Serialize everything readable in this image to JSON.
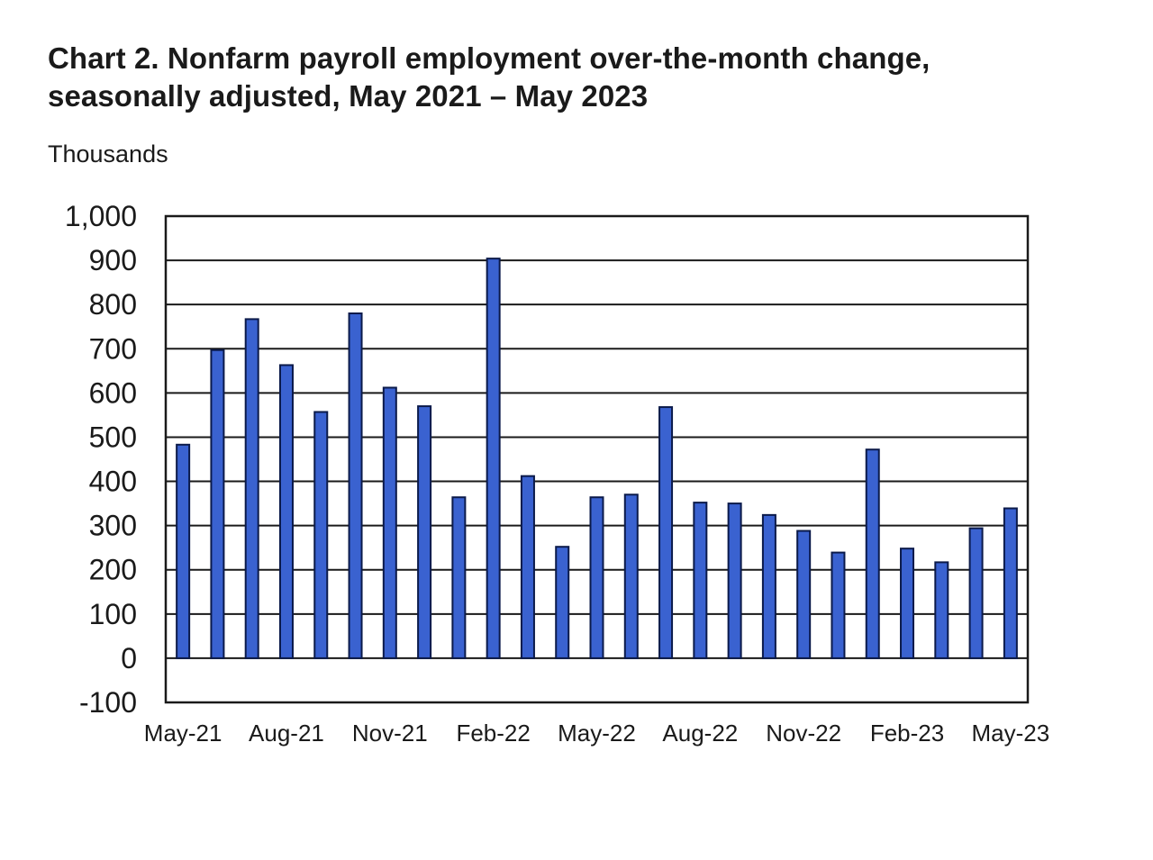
{
  "chart_data": {
    "type": "bar",
    "title_line1": "Chart 2. Nonfarm payroll employment over-the-month change,",
    "title_line2": "seasonally adjusted, May 2021 – May 2023",
    "unit_label": "Thousands",
    "xlabel": "",
    "ylabel": "",
    "ylim": [
      -100,
      1000
    ],
    "yticks": [
      1000,
      900,
      800,
      700,
      600,
      500,
      400,
      300,
      200,
      100,
      0,
      -100
    ],
    "ytick_labels": [
      "1,000",
      "900",
      "800",
      "700",
      "600",
      "500",
      "400",
      "300",
      "200",
      "100",
      "0",
      "-100"
    ],
    "grid": true,
    "bar_color": "#3a62d0",
    "categories": [
      "May-21",
      "Jun-21",
      "Jul-21",
      "Aug-21",
      "Sep-21",
      "Oct-21",
      "Nov-21",
      "Dec-21",
      "Jan-22",
      "Feb-22",
      "Mar-22",
      "Apr-22",
      "May-22",
      "Jun-22",
      "Jul-22",
      "Aug-22",
      "Sep-22",
      "Oct-22",
      "Nov-22",
      "Dec-22",
      "Jan-23",
      "Feb-23",
      "Mar-23",
      "Apr-23",
      "May-23"
    ],
    "x_tick_labels": [
      "May-21",
      "Aug-21",
      "Nov-21",
      "Feb-22",
      "May-22",
      "Aug-22",
      "Nov-22",
      "Feb-23",
      "May-23"
    ],
    "values": [
      483,
      697,
      767,
      663,
      557,
      780,
      612,
      570,
      364,
      904,
      412,
      252,
      364,
      370,
      568,
      352,
      350,
      324,
      288,
      239,
      472,
      248,
      217,
      294,
      339
    ]
  }
}
